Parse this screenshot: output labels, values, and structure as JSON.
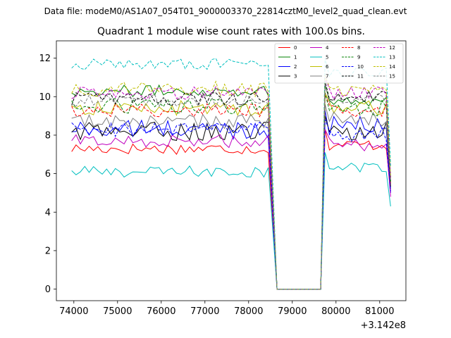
{
  "chart_data": {
    "type": "line",
    "suptitle": "Data file: modeM0/AS1A07_054T01_9000003370_22814cztM0_level2_quad_clean.evt",
    "title": "Quadrant 1 module wise count rates with 100.0s bins.",
    "xlabel": "",
    "ylabel": "",
    "offset_label": "+3.142e8",
    "offset": 314200000,
    "xlim": [
      73600,
      81600
    ],
    "ylim": [
      -0.6,
      12.9
    ],
    "xticks": [
      74000,
      75000,
      76000,
      77000,
      78000,
      79000,
      80000,
      81000
    ],
    "xtick_labels": [
      "74000",
      "75000",
      "76000",
      "77000",
      "78000",
      "79000",
      "80000",
      "81000"
    ],
    "yticks": [
      0,
      2,
      4,
      6,
      8,
      10,
      12
    ],
    "ytick_labels": [
      "0",
      "2",
      "4",
      "6",
      "8",
      "10",
      "12"
    ],
    "time": {
      "start": 73950,
      "step": 100,
      "active_until": 78450,
      "gap_start": 78650,
      "gap_end": 79650,
      "resume": 79750,
      "end": 81250
    },
    "legend": {
      "location": "top-right",
      "columns": 4
    },
    "series": [
      {
        "name": "0",
        "color": "#ff0000",
        "dashed": false,
        "level": 7.3,
        "jitter": 0.3,
        "after": 7.5,
        "end_value": 5.2
      },
      {
        "name": "1",
        "color": "#008000",
        "dashed": false,
        "level": 10.3,
        "jitter": 0.3,
        "after": 9.8,
        "end_value": 5.6
      },
      {
        "name": "2",
        "color": "#0000ff",
        "dashed": false,
        "level": 8.3,
        "jitter": 0.5,
        "after": 8.5,
        "end_value": 5.0
      },
      {
        "name": "3",
        "color": "#000000",
        "dashed": false,
        "level": 8.2,
        "jitter": 0.5,
        "after": 8.2,
        "end_value": 5.3
      },
      {
        "name": "4",
        "color": "#bf00bf",
        "dashed": false,
        "level": 7.7,
        "jitter": 0.35,
        "after": 7.5,
        "end_value": 4.8
      },
      {
        "name": "5",
        "color": "#00bfbf",
        "dashed": false,
        "level": 6.1,
        "jitter": 0.3,
        "after": 6.3,
        "end_value": 4.3
      },
      {
        "name": "6",
        "color": "#bfbf00",
        "dashed": false,
        "level": 9.4,
        "jitter": 0.4,
        "after": 9.4,
        "end_value": 5.6
      },
      {
        "name": "7",
        "color": "#808080",
        "dashed": false,
        "level": 8.7,
        "jitter": 0.4,
        "after": 8.8,
        "end_value": 5.5
      },
      {
        "name": "8",
        "color": "#ff0000",
        "dashed": true,
        "level": 9.3,
        "jitter": 0.35,
        "after": 9.3,
        "end_value": 5.4
      },
      {
        "name": "9",
        "color": "#008000",
        "dashed": true,
        "level": 9.5,
        "jitter": 0.4,
        "after": 9.4,
        "end_value": 5.5
      },
      {
        "name": "10",
        "color": "#0000ff",
        "dashed": true,
        "level": 8.3,
        "jitter": 0.4,
        "after": 8.0,
        "end_value": 5.1
      },
      {
        "name": "11",
        "color": "#000000",
        "dashed": true,
        "level": 9.9,
        "jitter": 0.35,
        "after": 10.0,
        "end_value": 5.8
      },
      {
        "name": "12",
        "color": "#bf00bf",
        "dashed": true,
        "level": 10.2,
        "jitter": 0.35,
        "after": 10.2,
        "end_value": 5.7
      },
      {
        "name": "13",
        "color": "#00bfbf",
        "dashed": true,
        "level": 11.7,
        "jitter": 0.3,
        "after": 11.2,
        "end_value": 6.4
      },
      {
        "name": "14",
        "color": "#bfbf00",
        "dashed": true,
        "level": 10.4,
        "jitter": 0.4,
        "after": 10.3,
        "end_value": 5.9
      },
      {
        "name": "15",
        "color": "#808080",
        "dashed": true,
        "level": 9.8,
        "jitter": 0.35,
        "after": 9.9,
        "end_value": 5.6
      }
    ]
  }
}
